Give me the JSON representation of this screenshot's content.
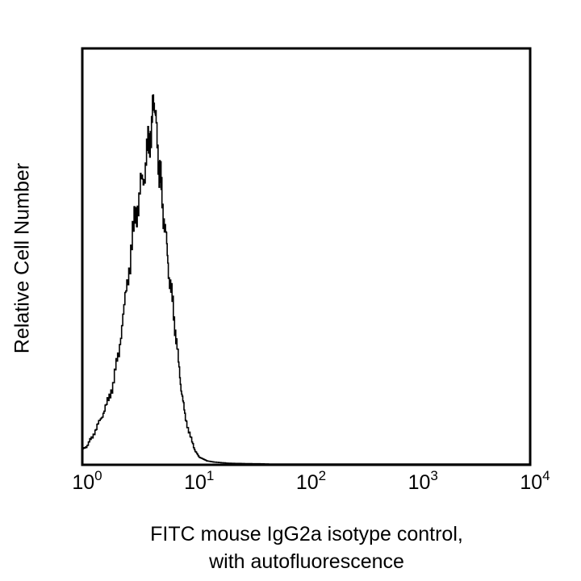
{
  "chart_data": {
    "type": "line",
    "subtype": "flow-cytometry-histogram",
    "title": "",
    "xlabel": "FITC mouse IgG2a isotype control, with autofluorescence",
    "xlabel_lines": [
      "FITC mouse IgG2a isotype control,",
      "with autofluorescence"
    ],
    "ylabel": "Relative Cell Number",
    "xscale": "log",
    "xlim": [
      1,
      10000
    ],
    "ylim": [
      0,
      100
    ],
    "x_ticks": [
      {
        "base": "10",
        "exp": "0",
        "value": 1
      },
      {
        "base": "10",
        "exp": "1",
        "value": 10
      },
      {
        "base": "10",
        "exp": "2",
        "value": 100
      },
      {
        "base": "10",
        "exp": "3",
        "value": 1000
      },
      {
        "base": "10",
        "exp": "4",
        "value": 10000
      }
    ],
    "y_ticks": [],
    "grid": false,
    "legend": null,
    "line_color": "#000000",
    "series": [
      {
        "name": "FITC mouse IgG2a isotype control",
        "x": [
          1.0,
          1.1,
          1.2,
          1.35,
          1.5,
          1.7,
          1.9,
          2.1,
          2.4,
          2.7,
          3.0,
          3.3,
          3.6,
          3.9,
          4.2,
          4.4,
          4.6,
          4.9,
          5.2,
          5.6,
          6.0,
          6.5,
          7.0,
          7.6,
          8.2,
          9.0,
          10.0,
          11.0,
          12.0,
          13.0,
          15.0,
          20.0,
          30.0,
          50.0,
          80.0
        ],
        "values": [
          4,
          5,
          7,
          10,
          13,
          17,
          22,
          30,
          43,
          56,
          66,
          72,
          77,
          84,
          90,
          96,
          86,
          76,
          68,
          58,
          48,
          40,
          30,
          20,
          13,
          8,
          4,
          2,
          1.5,
          1,
          0.7,
          0.4,
          0.3,
          0.2,
          0.2
        ]
      }
    ],
    "peak": {
      "x": 4.4,
      "relative_height": 96
    }
  },
  "colors": {
    "background": "#ffffff",
    "axes": "#000000",
    "line": "#000000"
  }
}
